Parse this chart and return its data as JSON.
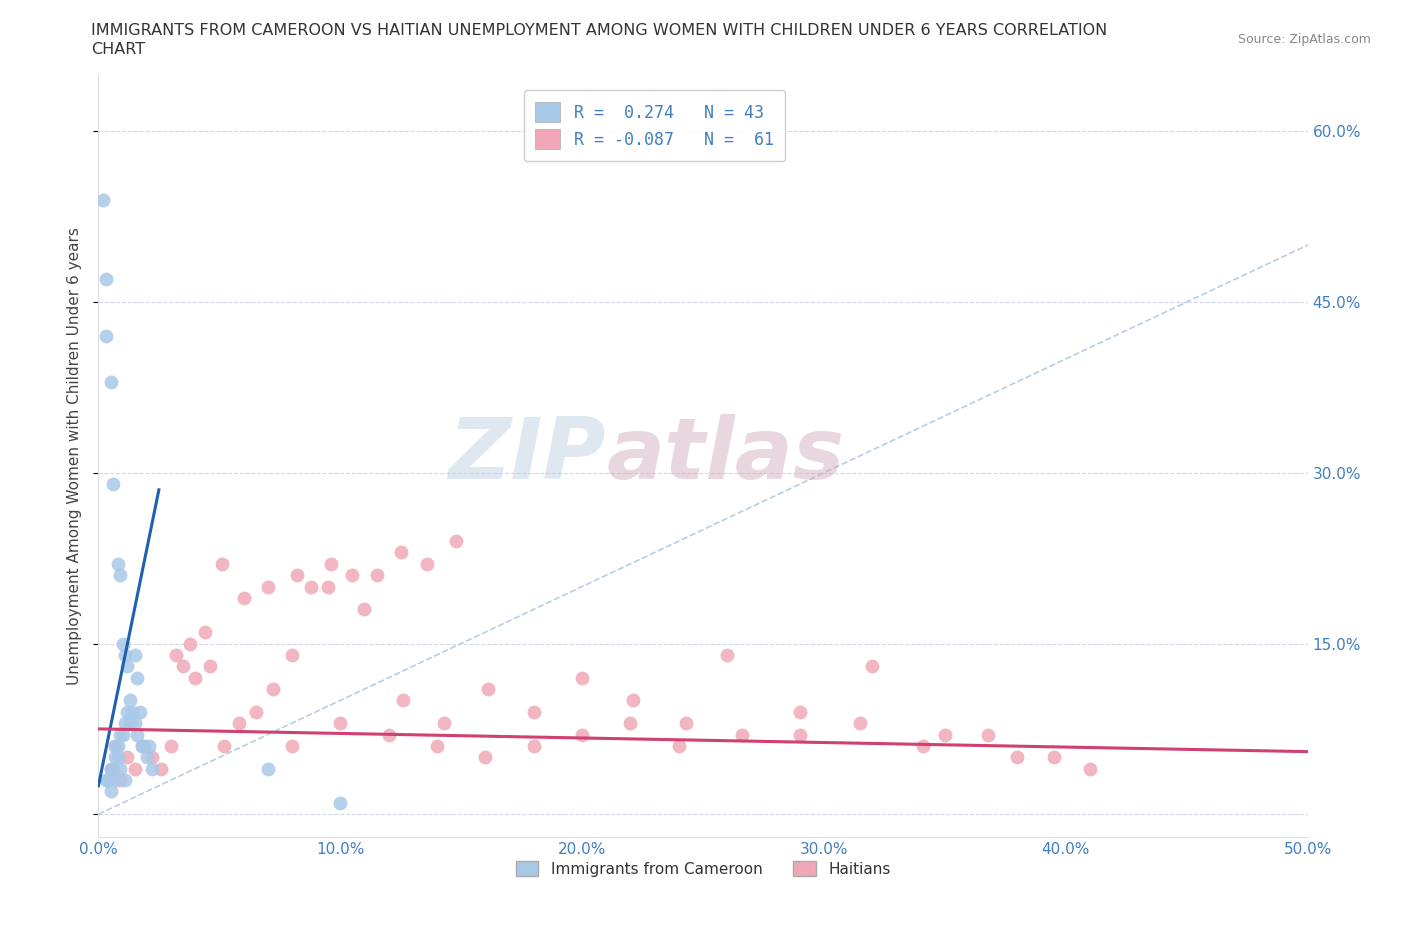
{
  "title_line1": "IMMIGRANTS FROM CAMEROON VS HAITIAN UNEMPLOYMENT AMONG WOMEN WITH CHILDREN UNDER 6 YEARS CORRELATION",
  "title_line2": "CHART",
  "source_text": "Source: ZipAtlas.com",
  "ylabel": "Unemployment Among Women with Children Under 6 years",
  "xlim": [
    0.0,
    0.5
  ],
  "ylim": [
    -0.02,
    0.65
  ],
  "xticks": [
    0.0,
    0.1,
    0.2,
    0.3,
    0.4,
    0.5
  ],
  "xticklabels": [
    "0.0%",
    "10.0%",
    "20.0%",
    "30.0%",
    "40.0%",
    "50.0%"
  ],
  "yticks": [
    0.0,
    0.15,
    0.3,
    0.45,
    0.6
  ],
  "yticklabels": [
    "",
    "15.0%",
    "30.0%",
    "45.0%",
    "60.0%"
  ],
  "grid_color": "#d0d8e8",
  "background_color": "#ffffff",
  "watermark_zip": "ZIP",
  "watermark_atlas": "atlas",
  "legend_label_cam": "R =  0.274   N = 43",
  "legend_label_hai": "R = -0.087   N =  61",
  "color_cameroon": "#a8c8e8",
  "color_haitian": "#f0a8b8",
  "color_line_cameroon": "#2060b0",
  "color_line_haitian": "#d04070",
  "color_ref_line": "#b0c8e0",
  "color_tick": "#4080c0",
  "marker_size": 100,
  "cam_trend_x0": 0.0,
  "cam_trend_y0": 0.025,
  "cam_trend_x1": 0.025,
  "cam_trend_y1": 0.285,
  "hai_trend_x0": 0.0,
  "hai_trend_y0": 0.075,
  "hai_trend_x1": 0.5,
  "hai_trend_y1": 0.055,
  "cameroon_x": [
    0.002,
    0.003,
    0.003,
    0.004,
    0.005,
    0.005,
    0.006,
    0.006,
    0.007,
    0.007,
    0.008,
    0.008,
    0.009,
    0.009,
    0.01,
    0.01,
    0.011,
    0.011,
    0.012,
    0.012,
    0.013,
    0.013,
    0.014,
    0.015,
    0.015,
    0.016,
    0.016,
    0.017,
    0.018,
    0.019,
    0.02,
    0.021,
    0.022,
    0.003,
    0.004,
    0.005,
    0.006,
    0.007,
    0.008,
    0.009,
    0.011,
    0.07,
    0.1
  ],
  "cameroon_y": [
    0.54,
    0.47,
    0.42,
    0.03,
    0.04,
    0.38,
    0.04,
    0.29,
    0.05,
    0.06,
    0.06,
    0.22,
    0.07,
    0.21,
    0.07,
    0.15,
    0.14,
    0.08,
    0.09,
    0.13,
    0.1,
    0.08,
    0.09,
    0.14,
    0.08,
    0.12,
    0.07,
    0.09,
    0.06,
    0.06,
    0.05,
    0.06,
    0.04,
    0.03,
    0.03,
    0.02,
    0.04,
    0.03,
    0.05,
    0.04,
    0.03,
    0.04,
    0.01
  ],
  "haitian_x": [
    0.005,
    0.007,
    0.009,
    0.012,
    0.015,
    0.018,
    0.022,
    0.026,
    0.03,
    0.035,
    0.04,
    0.046,
    0.052,
    0.058,
    0.065,
    0.072,
    0.08,
    0.088,
    0.096,
    0.105,
    0.115,
    0.125,
    0.136,
    0.148,
    0.032,
    0.038,
    0.044,
    0.051,
    0.06,
    0.07,
    0.082,
    0.095,
    0.11,
    0.126,
    0.143,
    0.161,
    0.18,
    0.2,
    0.221,
    0.243,
    0.266,
    0.29,
    0.315,
    0.341,
    0.368,
    0.38,
    0.395,
    0.41,
    0.35,
    0.32,
    0.29,
    0.26,
    0.24,
    0.22,
    0.2,
    0.18,
    0.16,
    0.14,
    0.12,
    0.1,
    0.08
  ],
  "haitian_y": [
    0.04,
    0.06,
    0.03,
    0.05,
    0.04,
    0.06,
    0.05,
    0.04,
    0.06,
    0.13,
    0.12,
    0.13,
    0.06,
    0.08,
    0.09,
    0.11,
    0.14,
    0.2,
    0.22,
    0.21,
    0.21,
    0.23,
    0.22,
    0.24,
    0.14,
    0.15,
    0.16,
    0.22,
    0.19,
    0.2,
    0.21,
    0.2,
    0.18,
    0.1,
    0.08,
    0.11,
    0.09,
    0.12,
    0.1,
    0.08,
    0.07,
    0.09,
    0.08,
    0.06,
    0.07,
    0.05,
    0.05,
    0.04,
    0.07,
    0.13,
    0.07,
    0.14,
    0.06,
    0.08,
    0.07,
    0.06,
    0.05,
    0.06,
    0.07,
    0.08,
    0.06
  ]
}
